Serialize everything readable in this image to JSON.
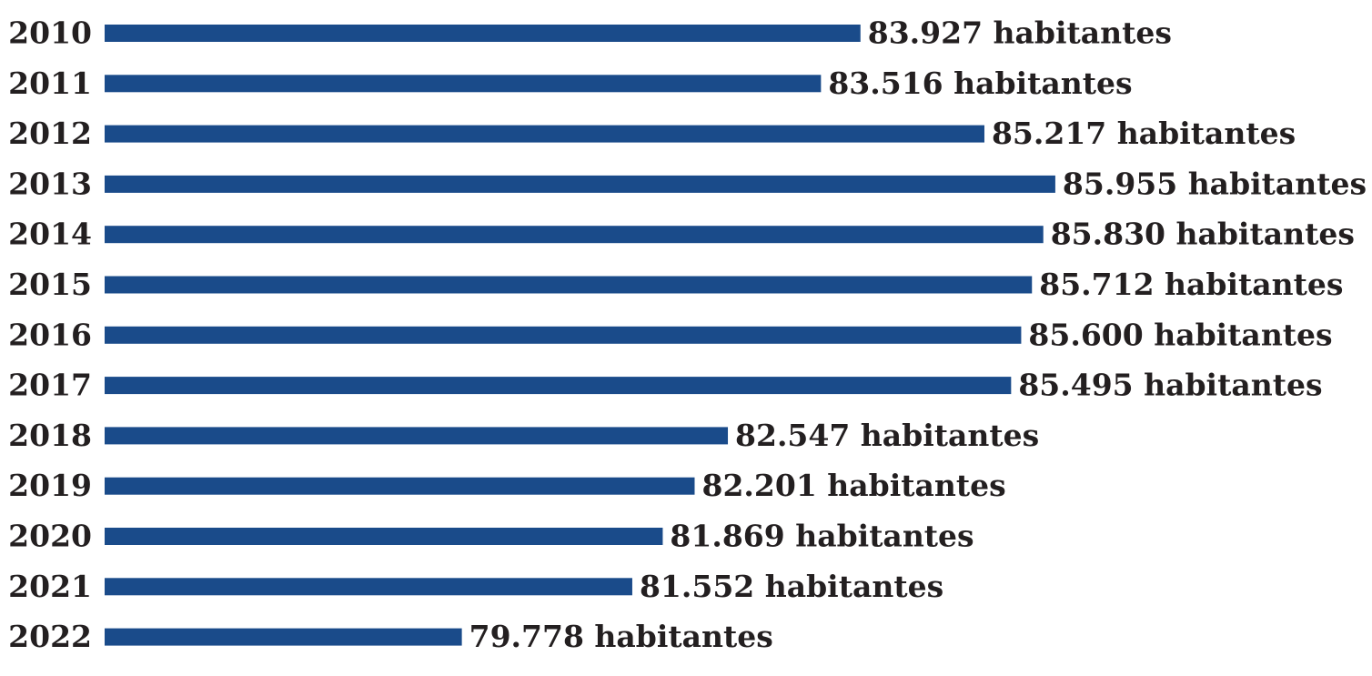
{
  "chart_data": {
    "type": "bar",
    "orientation": "horizontal",
    "title": "",
    "xlabel": "",
    "ylabel": "",
    "unit_suffix": "habitantes",
    "categories": [
      "2010",
      "2011",
      "2012",
      "2013",
      "2014",
      "2015",
      "2016",
      "2017",
      "2018",
      "2019",
      "2020",
      "2021",
      "2022"
    ],
    "values": [
      83927,
      83516,
      85217,
      85955,
      85830,
      85712,
      85600,
      85495,
      82547,
      82201,
      81869,
      81552,
      79778
    ],
    "value_labels": [
      "83.927 habitantes",
      "83.516 habitantes",
      "85.217 habitantes",
      "85.955 habitantes",
      "85.830 habitantes",
      "85.712 habitantes",
      "85.600 habitantes",
      "85.495 habitantes",
      "82.547 habitantes",
      "82.201 habitantes",
      "81.869 habitantes",
      "81.552 habitantes",
      "79.778 habitantes"
    ],
    "xlim": [
      76060,
      86000
    ],
    "grid": false,
    "legend": "none",
    "bar_color": "#1a4b8a",
    "text_color": "#231f20"
  }
}
